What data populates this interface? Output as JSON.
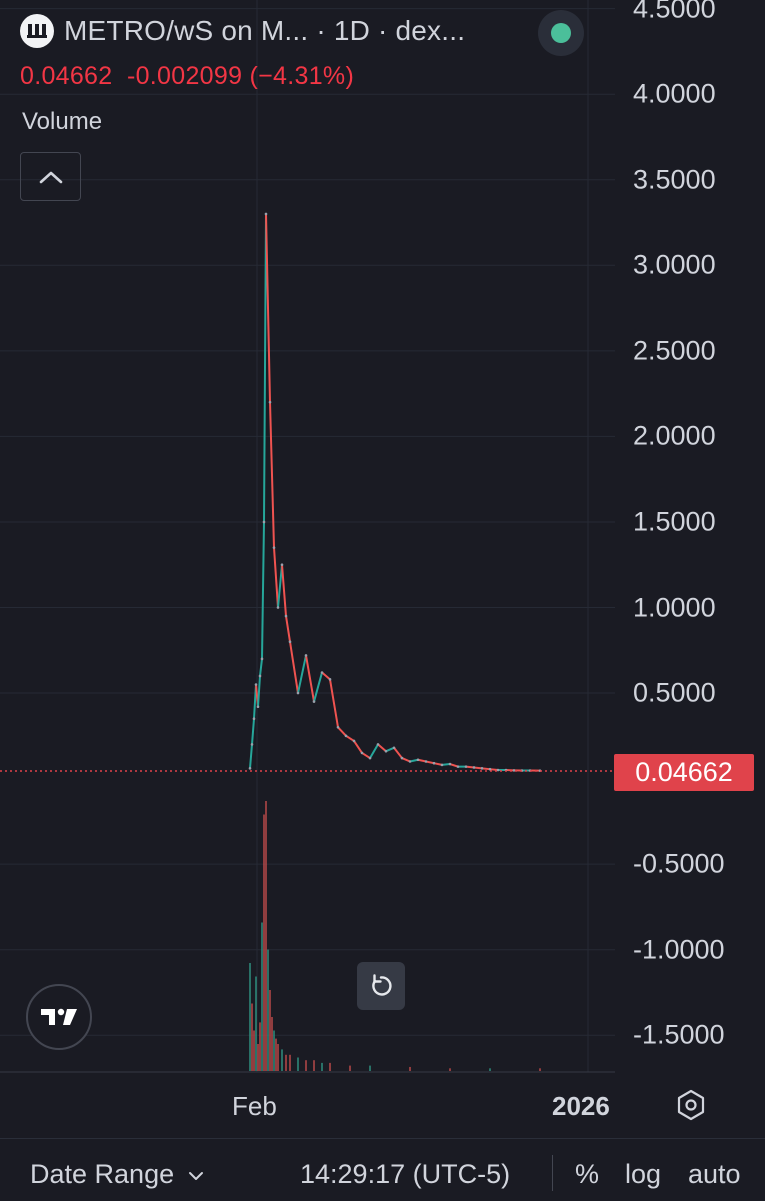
{
  "header": {
    "title": "METRO/wS on M...  · 1D · dex...",
    "price": "0.04662",
    "change": "-0.002099",
    "change_pct": "(−4.31%)",
    "status_color": "#4bbf9a"
  },
  "pane": {
    "volume_label": "Volume",
    "collapse_icon": "chevron-up-icon"
  },
  "price_axis": {
    "ticks": [
      "4.5000",
      "4.0000",
      "3.5000",
      "3.0000",
      "2.5000",
      "2.0000",
      "1.5000",
      "1.0000",
      "0.5000",
      "-0.5000",
      "-1.0000",
      "-1.5000"
    ],
    "last_price_label": "0.04662",
    "last_price_color": "#e0434b"
  },
  "time_axis": {
    "labels": [
      "Feb",
      "2026"
    ]
  },
  "bottom_bar": {
    "date_range_label": "Date Range",
    "time": "14:29:17 (UTC-5)",
    "percent_label": "%",
    "log_label": "log",
    "auto_label": "auto"
  },
  "colors": {
    "background": "#1a1b23",
    "up": "#26a69a",
    "down": "#ef5350",
    "grid": "#262a35"
  },
  "chart_data": {
    "type": "line",
    "title": "METRO/wS on M... · 1D · dex...",
    "xlabel": "",
    "ylabel": "",
    "ylim": [
      -1.75,
      4.6
    ],
    "x_ticks": [
      "Feb",
      "2026"
    ],
    "last_price": 0.04662,
    "series": [
      {
        "name": "",
        "x": [
          0,
          1,
          2,
          3,
          4,
          5,
          6,
          7,
          8,
          10,
          12,
          14,
          16,
          18,
          20,
          24,
          28,
          32,
          36,
          40,
          44,
          48,
          52,
          56,
          60,
          64,
          68,
          72,
          76,
          80,
          84,
          88,
          92,
          96,
          100,
          104,
          108,
          112,
          116,
          120,
          124,
          128,
          132,
          136,
          140,
          145
        ],
        "values": [
          0.06,
          0.2,
          0.35,
          0.55,
          0.42,
          0.6,
          0.7,
          1.5,
          3.3,
          2.2,
          1.35,
          1.0,
          1.25,
          0.95,
          0.8,
          0.5,
          0.72,
          0.45,
          0.62,
          0.58,
          0.3,
          0.25,
          0.22,
          0.15,
          0.12,
          0.2,
          0.16,
          0.18,
          0.12,
          0.1,
          0.11,
          0.1,
          0.09,
          0.08,
          0.085,
          0.07,
          0.07,
          0.065,
          0.06,
          0.055,
          0.05,
          0.05,
          0.048,
          0.047,
          0.047,
          0.04662
        ]
      }
    ],
    "volume": {
      "x": [
        0,
        1,
        2,
        3,
        4,
        5,
        6,
        7,
        8,
        9,
        10,
        11,
        12,
        13,
        14,
        16,
        18,
        20,
        24,
        28,
        32,
        36,
        40,
        50,
        60,
        80,
        100,
        120,
        145
      ],
      "values": [
        0.4,
        0.25,
        0.15,
        0.35,
        0.1,
        0.18,
        0.55,
        0.95,
        1.0,
        0.45,
        0.3,
        0.2,
        0.15,
        0.12,
        0.1,
        0.08,
        0.06,
        0.06,
        0.05,
        0.04,
        0.04,
        0.03,
        0.03,
        0.02,
        0.02,
        0.015,
        0.01,
        0.01,
        0.01
      ]
    }
  }
}
